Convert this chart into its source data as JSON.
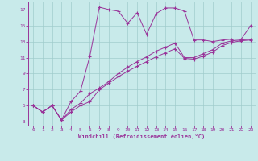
{
  "xlabel": "Windchill (Refroidissement éolien,°C)",
  "xlim": [
    -0.5,
    23.5
  ],
  "ylim": [
    2.5,
    18.0
  ],
  "xticks": [
    0,
    1,
    2,
    3,
    4,
    5,
    6,
    7,
    8,
    9,
    10,
    11,
    12,
    13,
    14,
    15,
    16,
    17,
    18,
    19,
    20,
    21,
    22,
    23
  ],
  "yticks": [
    3,
    5,
    7,
    9,
    11,
    13,
    15,
    17
  ],
  "bg_color": "#c8eaea",
  "line_color": "#993399",
  "grid_color": "#a0cccc",
  "curve_top_x": [
    0,
    1,
    2,
    3,
    4,
    5,
    6,
    7,
    8,
    9,
    10,
    11,
    12,
    13,
    14,
    15,
    16,
    17,
    18,
    19,
    20,
    21,
    22,
    23
  ],
  "curve_top_y": [
    5.0,
    4.2,
    5.0,
    3.2,
    5.5,
    6.8,
    11.2,
    17.3,
    17.0,
    16.8,
    15.3,
    16.6,
    13.9,
    16.5,
    17.2,
    17.2,
    16.8,
    13.2,
    13.2,
    13.0,
    13.2,
    13.3,
    13.3,
    15.0
  ],
  "curve_mid_x": [
    0,
    1,
    2,
    3,
    4,
    5,
    6,
    7,
    8,
    9,
    10,
    11,
    12,
    13,
    14,
    15,
    16,
    17,
    18,
    19,
    20,
    21,
    22,
    23
  ],
  "curve_mid_y": [
    5.0,
    4.2,
    5.0,
    3.2,
    4.5,
    5.3,
    6.5,
    7.2,
    8.0,
    9.0,
    9.8,
    10.5,
    11.1,
    11.8,
    12.3,
    12.8,
    11.0,
    11.0,
    11.5,
    12.0,
    12.8,
    13.1,
    13.2,
    13.3
  ],
  "curve_bot_x": [
    0,
    1,
    2,
    3,
    4,
    5,
    6,
    7,
    8,
    9,
    10,
    11,
    12,
    13,
    14,
    15,
    16,
    17,
    18,
    19,
    20,
    21,
    22,
    23
  ],
  "curve_bot_y": [
    5.0,
    4.2,
    5.0,
    3.2,
    4.2,
    5.0,
    5.5,
    7.0,
    7.8,
    8.6,
    9.3,
    9.9,
    10.5,
    11.1,
    11.6,
    12.1,
    10.9,
    10.8,
    11.2,
    11.7,
    12.5,
    12.9,
    13.1,
    13.2
  ]
}
